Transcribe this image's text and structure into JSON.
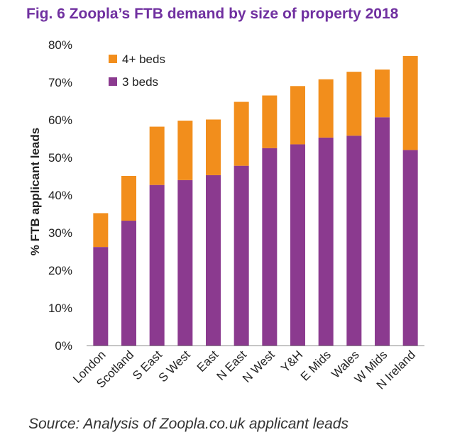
{
  "chart_data": {
    "type": "bar",
    "stacked": true,
    "title": "Fig. 6 Zoopla’s FTB demand by size of property 2018",
    "source": "Source: Analysis of Zoopla.co.uk applicant leads",
    "ylabel": "% FTB applicant leads",
    "xlabel": "",
    "ylim": [
      0,
      80
    ],
    "yticks": [
      "0%",
      "10%",
      "20%",
      "30%",
      "40%",
      "50%",
      "60%",
      "70%",
      "80%"
    ],
    "categories": [
      "London",
      "Scotland",
      "S East",
      "S West",
      "East",
      "N East",
      "N West",
      "Y&H",
      "E Mids",
      "Wales",
      "W Mids",
      "N Ireland"
    ],
    "series": [
      {
        "name": "3 beds",
        "color": "#8b3a8f",
        "values": [
          26.2,
          33.2,
          42.7,
          44.0,
          45.3,
          47.8,
          52.5,
          53.5,
          55.3,
          55.8,
          60.7,
          52.0
        ]
      },
      {
        "name": "4+ beds",
        "color": "#f28e1c",
        "values": [
          9.0,
          11.9,
          15.5,
          15.8,
          14.8,
          17.0,
          14.0,
          15.5,
          15.5,
          17.0,
          12.7,
          25.0
        ]
      }
    ],
    "legend": {
      "placement": "top-left",
      "order": [
        "4+ beds",
        "3 beds"
      ]
    },
    "grid": false
  }
}
